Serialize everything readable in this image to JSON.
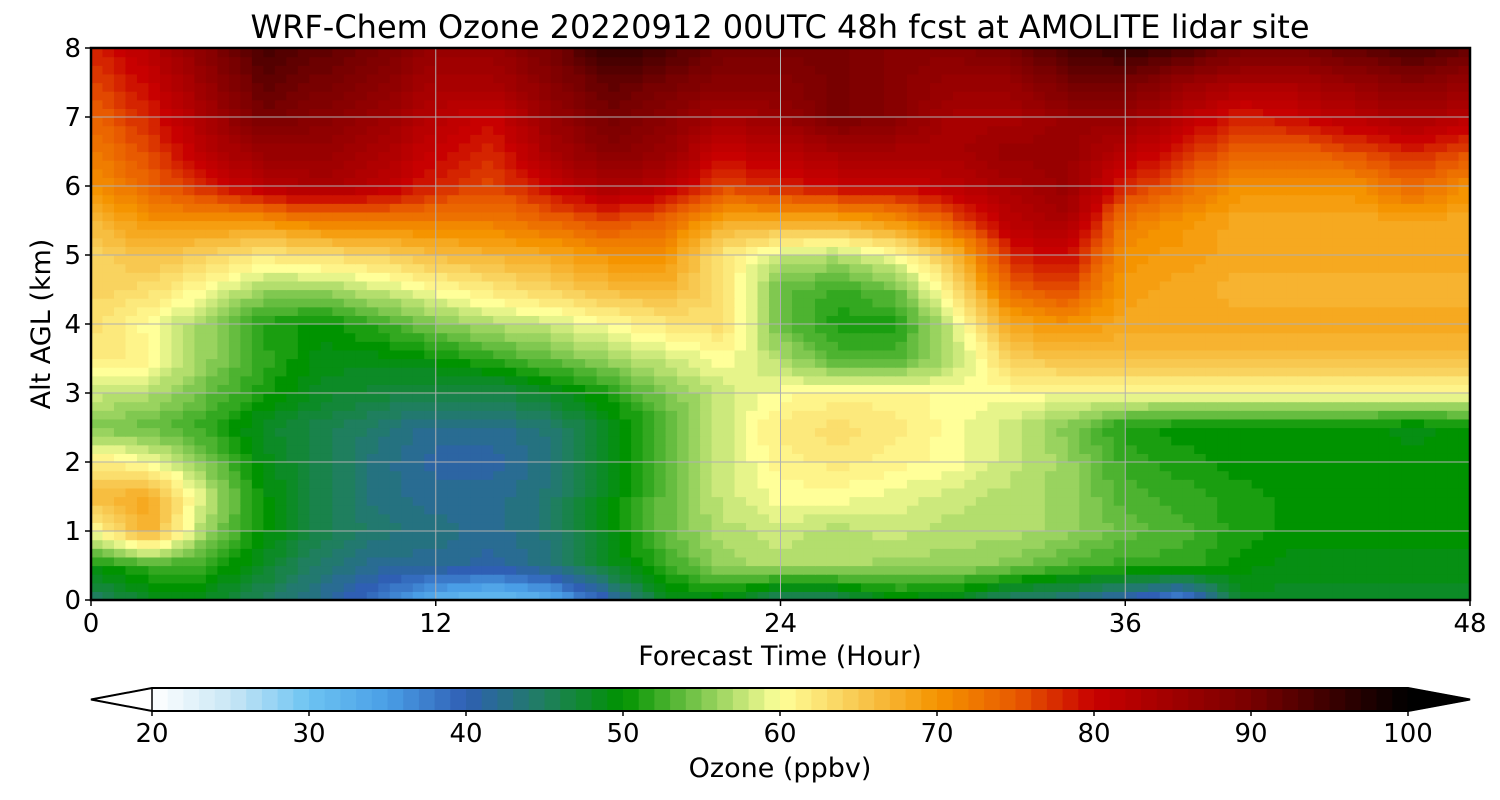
{
  "chart_data": {
    "type": "heatmap",
    "title": "WRF-Chem Ozone  20220912 00UTC 48h fcst at AMOLITE lidar site",
    "xlabel": "Forecast Time (Hour)",
    "ylabel": "Alt AGL (km)",
    "xlim": [
      0,
      48
    ],
    "ylim": [
      0,
      8
    ],
    "xticks": [
      0,
      12,
      24,
      36,
      48
    ],
    "yticks": [
      0,
      1,
      2,
      3,
      4,
      5,
      6,
      7,
      8
    ],
    "grid": true,
    "x": [
      0,
      2,
      4,
      6,
      8,
      10,
      12,
      14,
      16,
      18,
      20,
      22,
      24,
      26,
      28,
      30,
      32,
      34,
      36,
      38,
      40,
      42,
      44,
      46,
      48
    ],
    "y": [
      0,
      0.5,
      1,
      1.5,
      2,
      2.5,
      3,
      3.5,
      4,
      4.5,
      5,
      5.5,
      6,
      6.5,
      7,
      7.5,
      8
    ],
    "z": [
      [
        44,
        48,
        48,
        45,
        42,
        38,
        32,
        30,
        33,
        40,
        48,
        49,
        44,
        45,
        49,
        48,
        44,
        43,
        40,
        36,
        48,
        48,
        48,
        48,
        48
      ],
      [
        50,
        52,
        52,
        48,
        44,
        42,
        42,
        41,
        43,
        48,
        52,
        56,
        57,
        57,
        56,
        56,
        55,
        53,
        52,
        52,
        50,
        49,
        49,
        49,
        49
      ],
      [
        60,
        68,
        56,
        50,
        46,
        44,
        43,
        42,
        44,
        49,
        54,
        57,
        58,
        57,
        58,
        57,
        57,
        56,
        54,
        53,
        51,
        50,
        50,
        50,
        50
      ],
      [
        66,
        68,
        58,
        50,
        46,
        43,
        42,
        42,
        44,
        49,
        54,
        58,
        60,
        60,
        59,
        58,
        57,
        56,
        53,
        52,
        51,
        50,
        50,
        50,
        50
      ],
      [
        62,
        60,
        55,
        49,
        46,
        43,
        41,
        41,
        43,
        48,
        53,
        58,
        61,
        62,
        61,
        60,
        58,
        56,
        52,
        51,
        50,
        50,
        50,
        50,
        50
      ],
      [
        55,
        54,
        52,
        48,
        46,
        44,
        42,
        42,
        44,
        48,
        53,
        58,
        62,
        63,
        62,
        60,
        58,
        55,
        51,
        50,
        50,
        50,
        50,
        49,
        50
      ],
      [
        58,
        57,
        54,
        51,
        48,
        47,
        46,
        46,
        48,
        51,
        55,
        58,
        60,
        61,
        61,
        60,
        60,
        60,
        60,
        60,
        60,
        60,
        60,
        60,
        60
      ],
      [
        62,
        61,
        56,
        52,
        49,
        49,
        50,
        52,
        54,
        56,
        58,
        60,
        57,
        53,
        53,
        57,
        64,
        66,
        66,
        66,
        66,
        66,
        66,
        66,
        66
      ],
      [
        63,
        60,
        56,
        51,
        50,
        52,
        55,
        57,
        58,
        60,
        62,
        63,
        54,
        51,
        51,
        58,
        68,
        70,
        68,
        68,
        68,
        68,
        68,
        68,
        68
      ],
      [
        64,
        63,
        60,
        56,
        56,
        58,
        60,
        62,
        64,
        66,
        67,
        63,
        54,
        52,
        54,
        62,
        74,
        76,
        69,
        68,
        67,
        67,
        67,
        67,
        67
      ],
      [
        64,
        66,
        64,
        62,
        63,
        64,
        66,
        67,
        68,
        70,
        70,
        62,
        58,
        57,
        60,
        66,
        78,
        80,
        70,
        69,
        68,
        68,
        68,
        68,
        68
      ],
      [
        66,
        70,
        70,
        70,
        72,
        72,
        72,
        72,
        74,
        76,
        74,
        68,
        68,
        68,
        70,
        75,
        82,
        84,
        72,
        70,
        68,
        68,
        68,
        68,
        68
      ],
      [
        70,
        74,
        78,
        82,
        84,
        82,
        78,
        76,
        80,
        84,
        82,
        76,
        78,
        80,
        80,
        82,
        84,
        86,
        78,
        74,
        70,
        70,
        70,
        74,
        70
      ],
      [
        72,
        76,
        82,
        86,
        86,
        84,
        80,
        78,
        84,
        88,
        86,
        80,
        82,
        84,
        84,
        84,
        86,
        86,
        82,
        78,
        74,
        74,
        76,
        78,
        76
      ],
      [
        74,
        78,
        84,
        90,
        88,
        86,
        82,
        80,
        86,
        90,
        88,
        84,
        86,
        90,
        88,
        84,
        84,
        86,
        86,
        82,
        78,
        80,
        82,
        84,
        82
      ],
      [
        76,
        80,
        86,
        92,
        90,
        88,
        84,
        84,
        88,
        92,
        90,
        88,
        88,
        90,
        88,
        86,
        86,
        90,
        90,
        86,
        84,
        84,
        86,
        88,
        86
      ],
      [
        78,
        82,
        88,
        94,
        92,
        90,
        86,
        86,
        90,
        96,
        94,
        90,
        90,
        90,
        88,
        88,
        90,
        94,
        96,
        94,
        90,
        90,
        92,
        94,
        92
      ]
    ],
    "colorbar": {
      "label": "Ozone  (ppbv)",
      "min": 20,
      "max": 100,
      "ticks": [
        20,
        30,
        40,
        50,
        60,
        70,
        80,
        90,
        100
      ],
      "extend": "both",
      "colors": [
        [
          20,
          "#ffffff"
        ],
        [
          25,
          "#c9e6f5"
        ],
        [
          30,
          "#6cc3f2"
        ],
        [
          35,
          "#4a9ee6"
        ],
        [
          40,
          "#2f5fb4"
        ],
        [
          45,
          "#1f7f5e"
        ],
        [
          50,
          "#009300"
        ],
        [
          55,
          "#80c850"
        ],
        [
          60,
          "#ffff99"
        ],
        [
          65,
          "#f8c850"
        ],
        [
          70,
          "#f59400"
        ],
        [
          75,
          "#e85a00"
        ],
        [
          80,
          "#c80000"
        ],
        [
          85,
          "#a00000"
        ],
        [
          90,
          "#780000"
        ],
        [
          95,
          "#3c0000"
        ],
        [
          100,
          "#000000"
        ]
      ]
    }
  }
}
